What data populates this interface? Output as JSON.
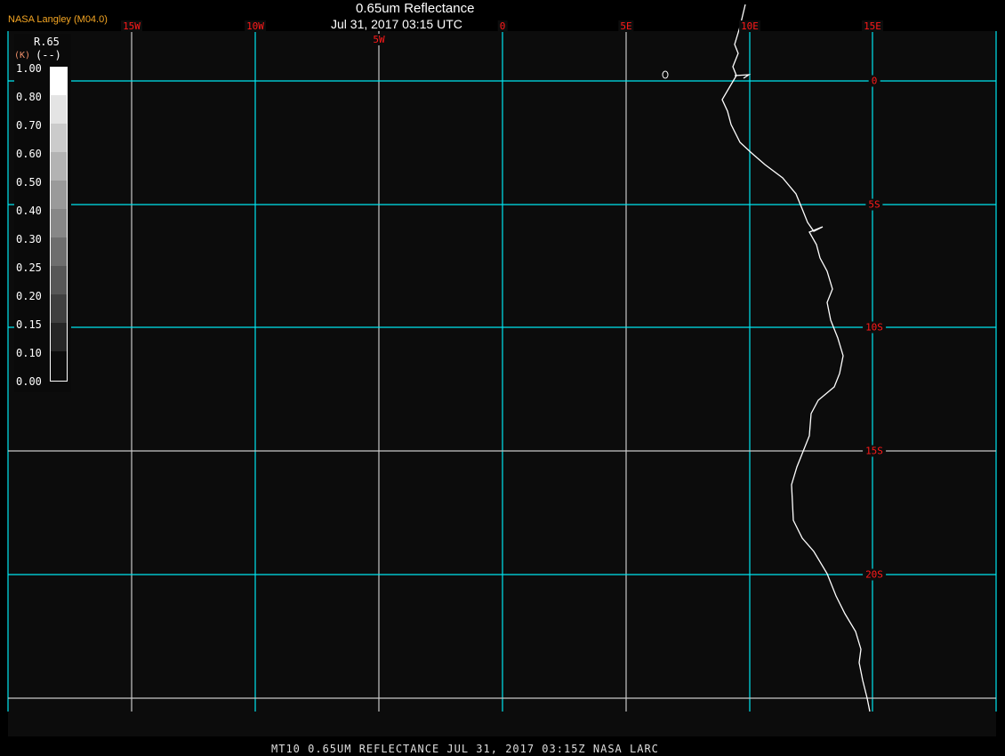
{
  "header": {
    "title": "0.65um Reflectance",
    "datetime": "Jul 31, 2017 03:15 UTC",
    "brand": "NASA Langley (M04.0)"
  },
  "footer": "MT10  0.65UM REFLECTANCE   JUL 31, 2017 03:15Z   NASA LARC",
  "longitude_labels": [
    "15W",
    "10W",
    "5W",
    "0",
    "5E",
    "10E",
    "15E"
  ],
  "latitude_labels": [
    "0",
    "5S",
    "10S",
    "15S",
    "20S"
  ],
  "legend": {
    "variable": "R.65",
    "units": "(--)",
    "unit_overlay": "(K)",
    "ticks": [
      "1.00",
      "0.80",
      "0.70",
      "0.60",
      "0.50",
      "0.40",
      "0.30",
      "0.25",
      "0.20",
      "0.15",
      "0.10",
      "0.00"
    ],
    "colors": [
      "#ffffff",
      "#e4e4e4",
      "#cbcbcb",
      "#b3b3b3",
      "#9a9a9a",
      "#878787",
      "#6e6e6e",
      "#575757",
      "#404040",
      "#262626",
      "#0c0c0c"
    ]
  },
  "colors": {
    "grid_major": "#00e5f0",
    "grid_minor": "#c8c8c8",
    "labels": "#ff1a1a",
    "coastline": "#ffffff",
    "background": "#0c0c0c"
  }
}
